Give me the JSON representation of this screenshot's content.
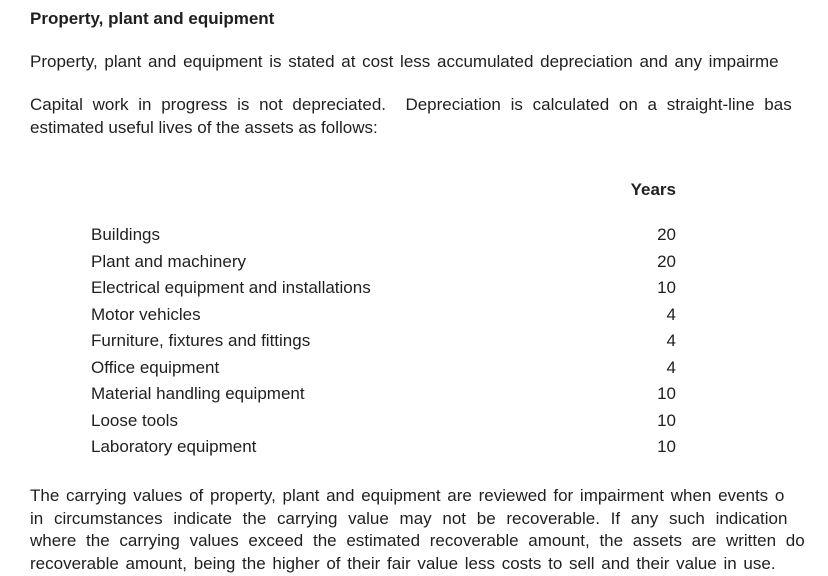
{
  "page": {
    "background_color": "#ffffff",
    "text_color": "#1f1f1f"
  },
  "heading": "Property, plant and equipment",
  "paragraph1": {
    "lines": [
      "Property, plant and equipment is stated at cost less accumulated depreciation and any impairme"
    ]
  },
  "paragraph2": {
    "lines": [
      "Capital work in progress is not depreciated.  Depreciation is calculated on a straight-line bas",
      "estimated useful lives of the assets as follows:"
    ]
  },
  "useful_lives_table": {
    "column_header": "Years",
    "rows": [
      {
        "asset": "Buildings",
        "years": "20"
      },
      {
        "asset": "Plant and machinery",
        "years": "20"
      },
      {
        "asset": "Electrical equipment and installations",
        "years": "10"
      },
      {
        "asset": "Motor vehicles",
        "years": "4"
      },
      {
        "asset": "Furniture, fixtures and fittings",
        "years": "4"
      },
      {
        "asset": "Office equipment",
        "years": "4"
      },
      {
        "asset": "Material handling equipment",
        "years": "10"
      },
      {
        "asset": "Loose tools",
        "years": "10"
      },
      {
        "asset": "Laboratory equipment",
        "years": "10"
      }
    ]
  },
  "paragraph3": {
    "lines": [
      "The carrying values of property, plant and equipment are reviewed for impairment when events o",
      "in circumstances indicate the carrying value may not be recoverable. If any such indication",
      "where the carrying values exceed the estimated recoverable amount, the assets are written do",
      "recoverable amount, being the higher of their fair value less costs to sell and their value in use."
    ]
  }
}
